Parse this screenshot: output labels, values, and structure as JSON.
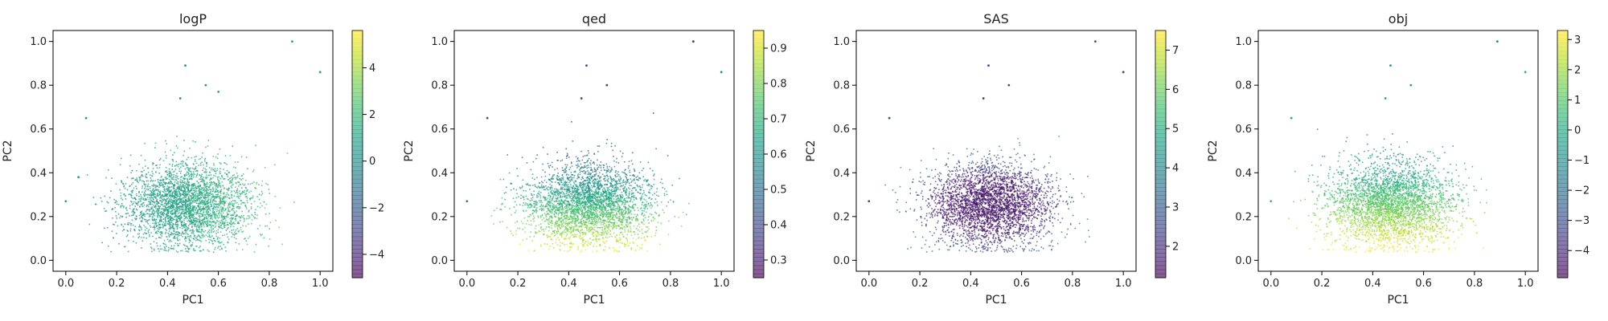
{
  "chart_data": [
    {
      "type": "scatter",
      "title": "logP",
      "xlabel": "PC1",
      "ylabel": "PC2",
      "xlim": [
        -0.05,
        1.05
      ],
      "ylim": [
        -0.05,
        1.05
      ],
      "xticks": [
        "0.0",
        "0.2",
        "0.4",
        "0.6",
        "0.8",
        "1.0"
      ],
      "yticks": [
        "0.0",
        "0.2",
        "0.4",
        "0.6",
        "0.8",
        "1.0"
      ],
      "colorbar": {
        "min": -5.0,
        "max": 5.6,
        "ticks": [
          "-4",
          "-2",
          "0",
          "2",
          "4"
        ]
      },
      "series": [
        {
          "values": [
            {
              "x": 0.0,
              "y": 0.27,
              "c": 1.0
            },
            {
              "x": 0.05,
              "y": 0.38,
              "c": 0.8
            },
            {
              "x": 0.08,
              "y": 0.65,
              "c": 0.9
            },
            {
              "x": 0.47,
              "y": 0.89,
              "c": 0.5
            },
            {
              "x": 0.89,
              "y": 1.0,
              "c": 1.3
            },
            {
              "x": 1.0,
              "y": 0.86,
              "c": 1.2
            },
            {
              "x": 0.55,
              "y": 0.8,
              "c": 1.0
            },
            {
              "x": 0.6,
              "y": 0.77,
              "c": 1.5
            },
            {
              "x": 0.45,
              "y": 0.74,
              "c": 0.8
            }
          ]
        }
      ]
    },
    {
      "type": "scatter",
      "title": "qed",
      "xlabel": "PC1",
      "ylabel": "PC2",
      "xlim": [
        -0.05,
        1.05
      ],
      "ylim": [
        -0.05,
        1.05
      ],
      "xticks": [
        "0.0",
        "0.2",
        "0.4",
        "0.6",
        "0.8",
        "1.0"
      ],
      "yticks": [
        "0.0",
        "0.2",
        "0.4",
        "0.6",
        "0.8",
        "1.0"
      ],
      "colorbar": {
        "min": 0.25,
        "max": 0.95,
        "ticks": [
          "0.3",
          "0.4",
          "0.5",
          "0.6",
          "0.7",
          "0.8",
          "0.9"
        ]
      },
      "series": [
        {
          "values": [
            {
              "x": 0.0,
              "y": 0.27,
              "c": 0.55
            },
            {
              "x": 0.08,
              "y": 0.65,
              "c": 0.45
            },
            {
              "x": 0.47,
              "y": 0.89,
              "c": 0.4
            },
            {
              "x": 0.89,
              "y": 1.0,
              "c": 0.35
            },
            {
              "x": 1.0,
              "y": 0.86,
              "c": 0.6
            },
            {
              "x": 0.55,
              "y": 0.8,
              "c": 0.38
            },
            {
              "x": 0.45,
              "y": 0.74,
              "c": 0.42
            }
          ]
        }
      ]
    },
    {
      "type": "scatter",
      "title": "SAS",
      "xlabel": "PC1",
      "ylabel": "PC2",
      "xlim": [
        -0.05,
        1.05
      ],
      "ylim": [
        -0.05,
        1.05
      ],
      "xticks": [
        "0.0",
        "0.2",
        "0.4",
        "0.6",
        "0.8",
        "1.0"
      ],
      "yticks": [
        "0.0",
        "0.2",
        "0.4",
        "0.6",
        "0.8",
        "1.0"
      ],
      "colorbar": {
        "min": 1.2,
        "max": 7.5,
        "ticks": [
          "2",
          "3",
          "4",
          "5",
          "6",
          "7"
        ]
      },
      "series": [
        {
          "values": [
            {
              "x": 0.0,
              "y": 0.27,
              "c": 2.5
            },
            {
              "x": 0.08,
              "y": 0.65,
              "c": 2.8
            },
            {
              "x": 0.47,
              "y": 0.89,
              "c": 2.6
            },
            {
              "x": 0.89,
              "y": 1.0,
              "c": 3.0
            },
            {
              "x": 1.0,
              "y": 0.86,
              "c": 2.5
            },
            {
              "x": 0.55,
              "y": 0.8,
              "c": 2.7
            },
            {
              "x": 0.45,
              "y": 0.74,
              "c": 2.4
            }
          ]
        }
      ]
    },
    {
      "type": "scatter",
      "title": "obj",
      "xlabel": "PC1",
      "ylabel": "PC2",
      "xlim": [
        -0.05,
        1.05
      ],
      "ylim": [
        -0.05,
        1.05
      ],
      "xticks": [
        "0.0",
        "0.2",
        "0.4",
        "0.6",
        "0.8",
        "1.0"
      ],
      "yticks": [
        "0.0",
        "0.2",
        "0.4",
        "0.6",
        "0.8",
        "1.0"
      ],
      "colorbar": {
        "min": -4.9,
        "max": 3.3,
        "ticks": [
          "-4",
          "-3",
          "-2",
          "-1",
          "0",
          "1",
          "2",
          "3"
        ]
      },
      "series": [
        {
          "values": [
            {
              "x": 0.0,
              "y": 0.27,
              "c": 0.5
            },
            {
              "x": 0.08,
              "y": 0.65,
              "c": 0.0
            },
            {
              "x": 0.47,
              "y": 0.89,
              "c": -0.5
            },
            {
              "x": 0.89,
              "y": 1.0,
              "c": -1.0
            },
            {
              "x": 1.0,
              "y": 0.86,
              "c": 0.5
            },
            {
              "x": 0.55,
              "y": 0.8,
              "c": -0.3
            },
            {
              "x": 0.45,
              "y": 0.74,
              "c": 0.2
            }
          ]
        }
      ]
    }
  ]
}
